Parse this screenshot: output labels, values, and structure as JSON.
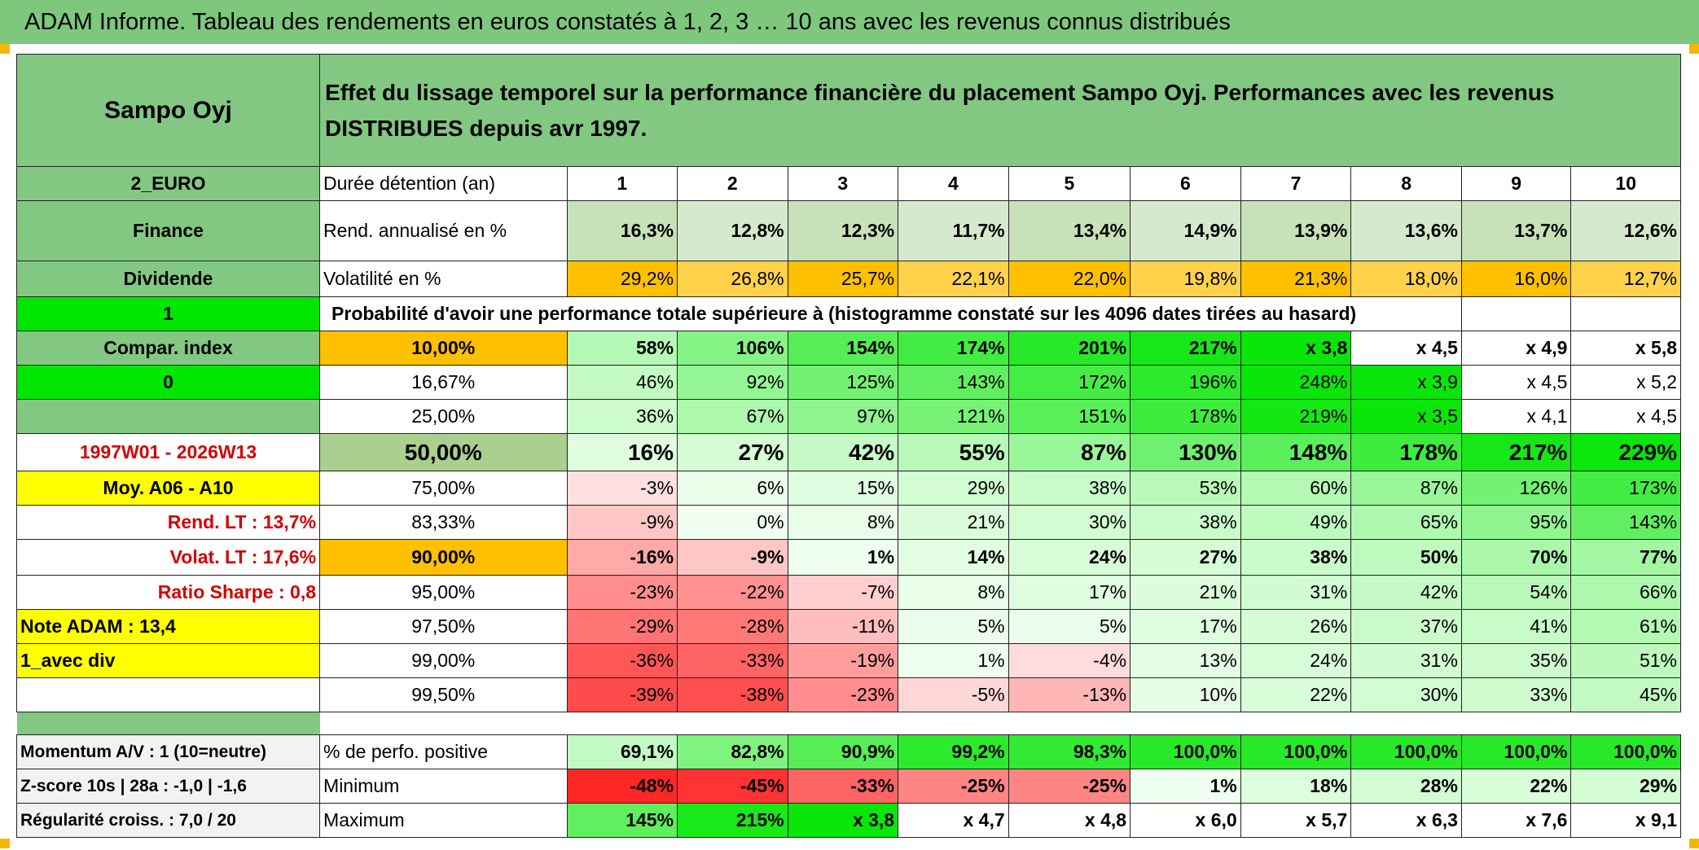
{
  "title": "ADAM Informe. Tableau des rendements en euros constatés à 1, 2, 3 … 10 ans avec les revenus connus distribués",
  "description": "Effet du lissage temporel sur la performance financière du placement Sampo Oyj. Performances avec les revenus DISTRIBUES depuis avr 1997.",
  "colors": {
    "header_green": "#82c882",
    "orange": "#ffc000",
    "yellow": "#ffff00",
    "bright_green": "#00e600",
    "red_text": "#d40000"
  },
  "left": {
    "name": "Sampo Oyj",
    "currency": "2_EURO",
    "sector": "Finance",
    "type": "Dividende",
    "flag1": "1",
    "compar_label": "Compar. index",
    "flag0": "0",
    "period": "1997W01 - 2026W13",
    "moy": "Moy. A06 - A10",
    "rend_lt": "Rend. LT :   13,7%",
    "volat_lt": "Volat. LT :   17,6%",
    "sharpe": "Ratio Sharpe :   0,8",
    "note": "Note ADAM : 13,4",
    "mode": "1_avec div",
    "momentum": "Momentum A/V : 1 (10=neutre)",
    "zscore": "Z-score 10s | 28a : -1,0 | -1,6",
    "regularite": "Régularité croiss. : 7,0 / 20"
  },
  "header": {
    "duree_label": "Durée détention (an)",
    "years": [
      "1",
      "2",
      "3",
      "4",
      "5",
      "6",
      "7",
      "8",
      "9",
      "10"
    ]
  },
  "rend": {
    "label": "Rend. annualisé en %",
    "values": [
      "16,3%",
      "12,8%",
      "12,3%",
      "11,7%",
      "13,4%",
      "14,9%",
      "13,9%",
      "13,6%",
      "13,7%",
      "12,6%"
    ]
  },
  "vol": {
    "label": "Volatilité en %",
    "values": [
      "29,2%",
      "26,8%",
      "25,7%",
      "22,1%",
      "22,0%",
      "19,8%",
      "21,3%",
      "18,0%",
      "16,0%",
      "12,7%"
    ]
  },
  "proba_title": "Probabilité d'avoir une performance totale supérieure à (histogramme constaté sur les 4096 dates tirées au hasard)",
  "prob_rows": [
    {
      "pct": "10,00%",
      "values": [
        "58%",
        "106%",
        "154%",
        "174%",
        "201%",
        "217%",
        "x 3,8",
        "x 4,5",
        "x 4,9",
        "x 5,8"
      ]
    },
    {
      "pct": "16,67%",
      "values": [
        "46%",
        "92%",
        "125%",
        "143%",
        "172%",
        "196%",
        "248%",
        "x 3,9",
        "x 4,5",
        "x 5,2"
      ]
    },
    {
      "pct": "25,00%",
      "values": [
        "36%",
        "67%",
        "97%",
        "121%",
        "151%",
        "178%",
        "219%",
        "x 3,5",
        "x 4,1",
        "x 4,5"
      ]
    },
    {
      "pct": "50,00%",
      "values": [
        "16%",
        "27%",
        "42%",
        "55%",
        "87%",
        "130%",
        "148%",
        "178%",
        "217%",
        "229%"
      ]
    },
    {
      "pct": "75,00%",
      "values": [
        "-3%",
        "6%",
        "15%",
        "29%",
        "38%",
        "53%",
        "60%",
        "87%",
        "126%",
        "173%"
      ]
    },
    {
      "pct": "83,33%",
      "values": [
        "-9%",
        "0%",
        "8%",
        "21%",
        "30%",
        "38%",
        "49%",
        "65%",
        "95%",
        "143%"
      ]
    },
    {
      "pct": "90,00%",
      "values": [
        "-16%",
        "-9%",
        "1%",
        "14%",
        "24%",
        "27%",
        "38%",
        "50%",
        "70%",
        "77%"
      ]
    },
    {
      "pct": "95,00%",
      "values": [
        "-23%",
        "-22%",
        "-7%",
        "8%",
        "17%",
        "21%",
        "31%",
        "42%",
        "54%",
        "66%"
      ]
    },
    {
      "pct": "97,50%",
      "values": [
        "-29%",
        "-28%",
        "-11%",
        "5%",
        "5%",
        "17%",
        "26%",
        "37%",
        "41%",
        "61%"
      ]
    },
    {
      "pct": "99,00%",
      "values": [
        "-36%",
        "-33%",
        "-19%",
        "1%",
        "-4%",
        "13%",
        "24%",
        "31%",
        "35%",
        "51%"
      ]
    },
    {
      "pct": "99,50%",
      "values": [
        "-39%",
        "-38%",
        "-23%",
        "-5%",
        "-13%",
        "10%",
        "22%",
        "30%",
        "33%",
        "45%"
      ]
    }
  ],
  "pos": {
    "label": "% de perfo. positive",
    "values": [
      "69,1%",
      "82,8%",
      "90,9%",
      "99,2%",
      "98,3%",
      "100,0%",
      "100,0%",
      "100,0%",
      "100,0%",
      "100,0%"
    ]
  },
  "min": {
    "label": "Minimum",
    "values": [
      "-48%",
      "-45%",
      "-33%",
      "-25%",
      "-25%",
      "1%",
      "18%",
      "28%",
      "22%",
      "29%"
    ]
  },
  "max": {
    "label": "Maximum",
    "values": [
      "145%",
      "215%",
      "x 3,8",
      "x 4,7",
      "x 4,8",
      "x 6,0",
      "x 5,7",
      "x 6,3",
      "x 7,6",
      "x 9,1"
    ]
  }
}
